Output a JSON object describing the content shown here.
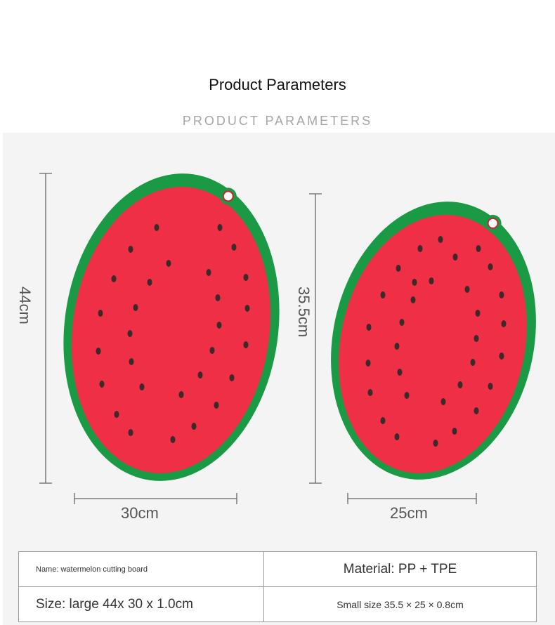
{
  "header": {
    "title": "Product Parameters",
    "subtitle": "PRODUCT PARAMETERS"
  },
  "boards": {
    "large": {
      "height_label": "44cm",
      "width_label": "30cm"
    },
    "small": {
      "height_label": "35.5cm",
      "width_label": "25cm"
    }
  },
  "params": {
    "name": "Name: watermelon cutting board",
    "material": "Material: PP + TPE",
    "size_large": "Size: large 44x 30 x 1.0cm",
    "size_small": "Small size 35.5 × 25 × 0.8cm"
  },
  "colors": {
    "rind": "#1b9a45",
    "flesh": "#ee2f45",
    "seed": "#3a2a2a",
    "dimension_line": "#666666"
  }
}
